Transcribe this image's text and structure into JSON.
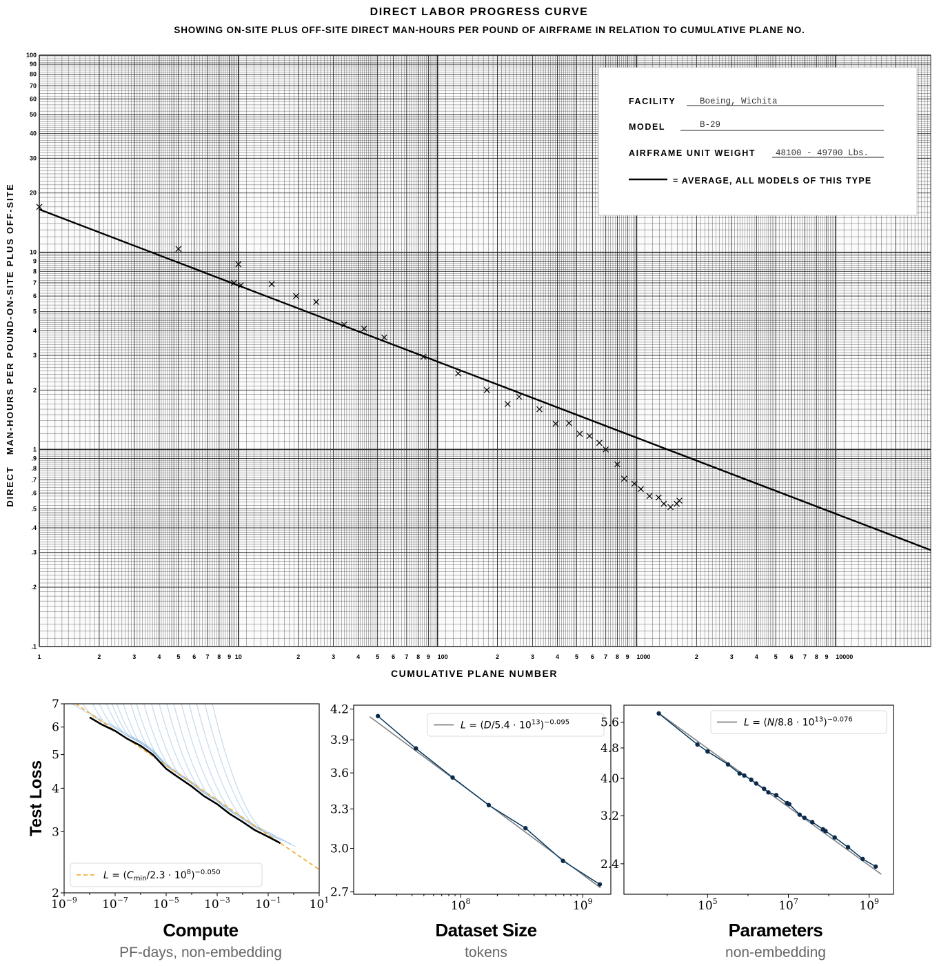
{
  "chart_data": [
    {
      "type": "scatter",
      "title": "DIRECT LABOR PROGRESS CURVE",
      "subtitle": "SHOWING ON-SITE PLUS OFF-SITE DIRECT MAN-HOURS PER POUND OF AIRFRAME IN RELATION TO CUMULATIVE PLANE NO.",
      "xlabel": "CUMULATIVE PLANE NUMBER",
      "ylabel": "DIRECT   MAN-HOURS PER POUND-ON-SITE PLUS OFF-SITE",
      "xscale": "log",
      "yscale": "log",
      "xlim": [
        1,
        30000
      ],
      "ylim": [
        0.1,
        100
      ],
      "grid": true,
      "xticks": [
        {
          "v": 1,
          "l": "1"
        },
        {
          "v": 2,
          "l": "2"
        },
        {
          "v": 3,
          "l": "3"
        },
        {
          "v": 4,
          "l": "4"
        },
        {
          "v": 5,
          "l": "5"
        },
        {
          "v": 6,
          "l": "6"
        },
        {
          "v": 7,
          "l": "7"
        },
        {
          "v": 8,
          "l": "8"
        },
        {
          "v": 9,
          "l": "9"
        },
        {
          "v": 10,
          "l": "10"
        },
        {
          "v": 20,
          "l": "2"
        },
        {
          "v": 30,
          "l": "3"
        },
        {
          "v": 40,
          "l": "4"
        },
        {
          "v": 50,
          "l": "5"
        },
        {
          "v": 60,
          "l": "6"
        },
        {
          "v": 70,
          "l": "7"
        },
        {
          "v": 80,
          "l": "8"
        },
        {
          "v": 90,
          "l": "9"
        },
        {
          "v": 100,
          "l": "100"
        },
        {
          "v": 200,
          "l": "2"
        },
        {
          "v": 300,
          "l": "3"
        },
        {
          "v": 400,
          "l": "4"
        },
        {
          "v": 500,
          "l": "5"
        },
        {
          "v": 600,
          "l": "6"
        },
        {
          "v": 700,
          "l": "7"
        },
        {
          "v": 800,
          "l": "8"
        },
        {
          "v": 900,
          "l": "9"
        },
        {
          "v": 1000,
          "l": "1000"
        },
        {
          "v": 2000,
          "l": "2"
        },
        {
          "v": 3000,
          "l": "3"
        },
        {
          "v": 4000,
          "l": "4"
        },
        {
          "v": 5000,
          "l": "5"
        },
        {
          "v": 6000,
          "l": "6"
        },
        {
          "v": 7000,
          "l": "7"
        },
        {
          "v": 8000,
          "l": "8"
        },
        {
          "v": 9000,
          "l": "9"
        },
        {
          "v": 10000,
          "l": "10000"
        }
      ],
      "yticks": [
        {
          "v": 100,
          "l": "100"
        },
        {
          "v": 90,
          "l": "90"
        },
        {
          "v": 80,
          "l": "80"
        },
        {
          "v": 70,
          "l": "70"
        },
        {
          "v": 60,
          "l": "60"
        },
        {
          "v": 50,
          "l": "50"
        },
        {
          "v": 40,
          "l": "40"
        },
        {
          "v": 30,
          "l": "30"
        },
        {
          "v": 20,
          "l": "20"
        },
        {
          "v": 10,
          "l": "10"
        },
        {
          "v": 9,
          "l": "9"
        },
        {
          "v": 8,
          "l": "8"
        },
        {
          "v": 7,
          "l": "7"
        },
        {
          "v": 6,
          "l": "6"
        },
        {
          "v": 5,
          "l": "5"
        },
        {
          "v": 4,
          "l": "4"
        },
        {
          "v": 3,
          "l": "3"
        },
        {
          "v": 2,
          "l": "2"
        },
        {
          "v": 1,
          "l": "1"
        },
        {
          "v": 0.9,
          "l": ".9"
        },
        {
          "v": 0.8,
          "l": ".8"
        },
        {
          "v": 0.7,
          "l": ".7"
        },
        {
          "v": 0.6,
          "l": ".6"
        },
        {
          "v": 0.5,
          "l": ".5"
        },
        {
          "v": 0.4,
          "l": ".4"
        },
        {
          "v": 0.3,
          "l": ".3"
        },
        {
          "v": 0.2,
          "l": ".2"
        },
        {
          "v": 0.1,
          "l": ".1"
        }
      ],
      "average_line": {
        "a": 16.5,
        "exponent": -0.386
      },
      "points": [
        [
          1,
          17
        ],
        [
          5,
          10.4
        ],
        [
          9.5,
          7.0
        ],
        [
          10,
          8.7
        ],
        [
          10.3,
          6.8
        ],
        [
          14.7,
          6.9
        ],
        [
          19.5,
          6.0
        ],
        [
          24.6,
          5.6
        ],
        [
          34,
          4.3
        ],
        [
          42.8,
          4.1
        ],
        [
          54,
          3.7
        ],
        [
          85,
          2.95
        ],
        [
          127,
          2.43
        ],
        [
          177,
          2.0
        ],
        [
          225,
          1.7
        ],
        [
          257,
          1.85
        ],
        [
          325,
          1.6
        ],
        [
          392,
          1.35
        ],
        [
          458,
          1.36
        ],
        [
          518,
          1.2
        ],
        [
          580,
          1.17
        ],
        [
          650,
          1.08
        ],
        [
          700,
          1.0
        ],
        [
          800,
          0.84
        ],
        [
          866,
          0.71
        ],
        [
          975,
          0.67
        ],
        [
          1050,
          0.63
        ],
        [
          1160,
          0.58
        ],
        [
          1290,
          0.57
        ],
        [
          1370,
          0.53
        ],
        [
          1480,
          0.51
        ],
        [
          1590,
          0.53
        ],
        [
          1640,
          0.55
        ]
      ],
      "info_box": {
        "facility_label": "FACILITY",
        "facility": "Boeing, Wichita",
        "model_label": "MODEL",
        "model": "B-29",
        "weight_label": "AIRFRAME UNIT WEIGHT",
        "weight": "48100 - 49700 Lbs.",
        "legend_label": "= AVERAGE, ALL MODELS OF THIS TYPE"
      }
    },
    {
      "type": "line",
      "title": "Compute",
      "subtitle": "PF-days, non-embedding",
      "ylabel": "Test Loss",
      "xscale": "log",
      "yscale": "log",
      "xlim": [
        1e-09,
        10
      ],
      "ylim": [
        2,
        7
      ],
      "xticks": [
        {
          "v": 1e-09,
          "b": "10",
          "e": "−9"
        },
        {
          "v": 1e-07,
          "b": "10",
          "e": "−7"
        },
        {
          "v": 1e-05,
          "b": "10",
          "e": "−5"
        },
        {
          "v": 0.001,
          "b": "10",
          "e": "−3"
        },
        {
          "v": 0.1,
          "b": "10",
          "e": "−1"
        },
        {
          "v": 10,
          "b": "10",
          "e": "1"
        }
      ],
      "minor_xticks": [
        1e-08,
        1e-06,
        0.0001,
        0.01,
        1
      ],
      "yticks": [
        {
          "v": 2,
          "l": "2"
        },
        {
          "v": 3,
          "l": "3"
        },
        {
          "v": 4,
          "l": "4"
        },
        {
          "v": 5,
          "l": "5"
        },
        {
          "v": 6,
          "l": "6"
        },
        {
          "v": 7,
          "l": "7"
        }
      ],
      "frontier": [
        [
          1e-08,
          6.4
        ],
        [
          3e-08,
          6.1
        ],
        [
          1e-07,
          5.85
        ],
        [
          3e-07,
          5.55
        ],
        [
          1e-06,
          5.3
        ],
        [
          3e-06,
          5.0
        ],
        [
          1e-05,
          4.55
        ],
        [
          3e-05,
          4.3
        ],
        [
          0.0001,
          4.05
        ],
        [
          0.0003,
          3.8
        ],
        [
          0.001,
          3.6
        ],
        [
          0.003,
          3.38
        ],
        [
          0.01,
          3.2
        ],
        [
          0.03,
          3.03
        ],
        [
          0.1,
          2.9
        ],
        [
          0.3,
          2.78
        ]
      ],
      "model_curves": [
        {
          "start": 1e-09,
          "join": 1e-08,
          "end": 3e-08
        },
        {
          "start": 3e-09,
          "join": 6e-08,
          "end": 2e-07
        },
        {
          "start": 8e-09,
          "join": 2e-07,
          "end": 8e-07
        },
        {
          "start": 1.5e-08,
          "join": 5e-07,
          "end": 2e-06
        },
        {
          "start": 3e-08,
          "join": 1e-06,
          "end": 4e-06
        },
        {
          "start": 5e-08,
          "join": 2e-06,
          "end": 8e-06
        },
        {
          "start": 8e-08,
          "join": 4e-06,
          "end": 1.5e-05
        },
        {
          "start": 1.5e-07,
          "join": 8e-06,
          "end": 3e-05
        },
        {
          "start": 3e-07,
          "join": 2e-05,
          "end": 8e-05
        },
        {
          "start": 5e-07,
          "join": 5e-05,
          "end": 0.0002
        },
        {
          "start": 1e-06,
          "join": 0.0001,
          "end": 0.0005
        },
        {
          "start": 2e-06,
          "join": 0.0003,
          "end": 0.0015
        },
        {
          "start": 4e-06,
          "join": 0.0008,
          "end": 0.004
        },
        {
          "start": 8e-06,
          "join": 0.002,
          "end": 0.01
        },
        {
          "start": 1.5e-05,
          "join": 0.005,
          "end": 0.03
        },
        {
          "start": 3e-05,
          "join": 0.015,
          "end": 0.08
        },
        {
          "start": 6e-05,
          "join": 0.04,
          "end": 0.2
        },
        {
          "start": 0.00012,
          "join": 0.1,
          "end": 0.4
        },
        {
          "start": 0.00025,
          "join": 0.25,
          "end": 0.8
        },
        {
          "start": 0.0005,
          "join": 0.4,
          "end": 1.2
        }
      ],
      "fit": {
        "scale": 230000000.0,
        "exponent": 0.05,
        "range": [
          1e-09,
          10
        ]
      },
      "legend": {
        "segments": [
          {
            "t": "L",
            "s": "i"
          },
          {
            "t": " = (",
            "s": ""
          },
          {
            "t": "C",
            "s": "i"
          },
          {
            "t": "min",
            "s": "sub"
          },
          {
            "t": "/2.3 · 10",
            "s": ""
          },
          {
            "t": "8",
            "s": "sup"
          },
          {
            "t": ")",
            "s": ""
          },
          {
            "t": "−0.050",
            "s": "sup"
          }
        ],
        "placement": "lower-left"
      },
      "colors": {
        "models": "#5b9bd5",
        "frontier": "#000000",
        "fit": "#f0b13c"
      }
    },
    {
      "type": "line",
      "title": "Dataset Size",
      "subtitle": "tokens",
      "xscale": "log",
      "yscale": "log",
      "xlim": [
        13300000.0,
        1700000000.0
      ],
      "ylim": [
        2.685,
        4.24
      ],
      "xticks": [
        {
          "v": 100000000.0,
          "b": "10",
          "e": "8"
        },
        {
          "v": 1000000000.0,
          "b": "10",
          "e": "9"
        }
      ],
      "minor_xticks": [
        20000000.0,
        30000000.0,
        40000000.0,
        50000000.0,
        60000000.0,
        70000000.0,
        80000000.0,
        90000000.0,
        200000000.0,
        300000000.0,
        400000000.0,
        500000000.0,
        600000000.0,
        700000000.0,
        800000000.0,
        900000000.0
      ],
      "yticks": [
        {
          "v": 2.7,
          "l": "2.7"
        },
        {
          "v": 3.0,
          "l": "3.0"
        },
        {
          "v": 3.3,
          "l": "3.3"
        },
        {
          "v": 3.6,
          "l": "3.6"
        },
        {
          "v": 3.9,
          "l": "3.9"
        },
        {
          "v": 4.2,
          "l": "4.2"
        }
      ],
      "points": [
        [
          21000000.0,
          4.13
        ],
        [
          43000000.0,
          3.82
        ],
        [
          86000000.0,
          3.56
        ],
        [
          170000000.0,
          3.33
        ],
        [
          340000000.0,
          3.15
        ],
        [
          690000000.0,
          2.91
        ],
        [
          1380000000.0,
          2.75
        ]
      ],
      "fit": {
        "scale": 54000000000000.0,
        "exponent": 0.095,
        "range": [
          18000000.0,
          1400000000.0
        ]
      },
      "legend": {
        "segments": [
          {
            "t": "L",
            "s": "i"
          },
          {
            "t": " = (",
            "s": ""
          },
          {
            "t": "D",
            "s": "i"
          },
          {
            "t": "/5.4 · 10",
            "s": ""
          },
          {
            "t": "13",
            "s": "sup"
          },
          {
            "t": ")",
            "s": ""
          },
          {
            "t": "−0.095",
            "s": "sup"
          }
        ],
        "placement": "upper-right"
      },
      "colors": {
        "points": "#0d2a4a",
        "line": "#1f77b4",
        "fit": "#808080"
      }
    },
    {
      "type": "line",
      "title": "Parameters",
      "subtitle": "non-embedding",
      "xscale": "log",
      "yscale": "log",
      "xlim": [
        850,
        4000000000.0
      ],
      "ylim": [
        2.0,
        6.2
      ],
      "xticks": [
        {
          "v": 100000.0,
          "b": "10",
          "e": "5"
        },
        {
          "v": 10000000.0,
          "b": "10",
          "e": "7"
        },
        {
          "v": 1000000000.0,
          "b": "10",
          "e": "9"
        }
      ],
      "minor_xticks": [
        10000.0,
        1000000.0,
        100000000.0
      ],
      "yticks": [
        {
          "v": 2.4,
          "l": "2.4"
        },
        {
          "v": 3.2,
          "l": "3.2"
        },
        {
          "v": 4.0,
          "l": "4.0"
        },
        {
          "v": 4.8,
          "l": "4.8"
        },
        {
          "v": 5.6,
          "l": "5.6"
        }
      ],
      "points": [
        [
          6200,
          5.9
        ],
        [
          56000.0,
          4.9
        ],
        [
          100000.0,
          4.7
        ],
        [
          320000.0,
          4.35
        ],
        [
          620000.0,
          4.12
        ],
        [
          810000.0,
          4.07
        ],
        [
          1200000.0,
          3.97
        ],
        [
          1600000.0,
          3.88
        ],
        [
          2500000.0,
          3.76
        ],
        [
          3200000.0,
          3.68
        ],
        [
          5000000.0,
          3.62
        ],
        [
          9300000.0,
          3.45
        ],
        [
          10500000.0,
          3.43
        ],
        [
          19000000.0,
          3.22
        ],
        [
          25000000.0,
          3.16
        ],
        [
          39000000.0,
          3.08
        ],
        [
          72000000.0,
          2.95
        ],
        [
          83000000.0,
          2.92
        ],
        [
          140000000.0,
          2.81
        ],
        [
          300000000.0,
          2.65
        ],
        [
          690000000.0,
          2.47
        ],
        [
          1450000000.0,
          2.36
        ]
      ],
      "fit": {
        "scale": 88000000000000.0,
        "exponent": 0.076,
        "range": [
          6000,
          2000000000.0
        ]
      },
      "legend": {
        "segments": [
          {
            "t": "L",
            "s": "i"
          },
          {
            "t": " = (",
            "s": ""
          },
          {
            "t": "N",
            "s": "i"
          },
          {
            "t": "/8.8 · 10",
            "s": ""
          },
          {
            "t": "13",
            "s": "sup"
          },
          {
            "t": ")",
            "s": ""
          },
          {
            "t": "−0.076",
            "s": "sup"
          }
        ],
        "placement": "upper-right"
      },
      "colors": {
        "points": "#0d2a4a",
        "line": "#1f77b4",
        "fit": "#808080"
      }
    }
  ]
}
